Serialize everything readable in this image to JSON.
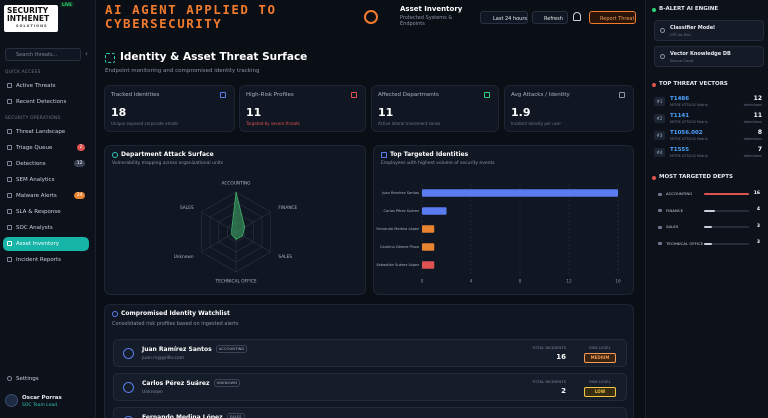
{
  "sidebar": {
    "logo": "SECURITY",
    "logo_accent": "INTHENET",
    "logo_sub": "SOLUTIONS",
    "live": "LIVE",
    "search_placeholder": "Search threats...",
    "sections": [
      {
        "title": "QUICK ACCESS",
        "items": [
          {
            "label": "Active Threats"
          },
          {
            "label": "Recent Detections"
          }
        ]
      },
      {
        "title": "SECURITY OPERATIONS",
        "items": [
          {
            "label": "Threat Landscape"
          },
          {
            "label": "Triage Queue",
            "badge": 2
          },
          {
            "label": "Detections",
            "badge": 12
          },
          {
            "label": "SEM Analytics"
          },
          {
            "label": "Malware Alerts",
            "badge": 24
          },
          {
            "label": "SLA & Response"
          },
          {
            "label": "SOC Analysts"
          },
          {
            "label": "Asset Inventory"
          },
          {
            "label": "Incident Reports"
          }
        ]
      }
    ],
    "settings": "Settings",
    "user": {
      "name": "Oscar Porras",
      "role": "SOC Team Lead"
    }
  },
  "header": {
    "title": "AI AGENT APPLIED TO CYBERSECURITY",
    "page": "Asset Inventory",
    "page_sub": "Protected Systems & Endpoints",
    "range": "Last 24 hours",
    "refresh": "Refresh",
    "report": "Report Threat"
  },
  "page": {
    "title": "Identity & Asset Threat Surface",
    "subtitle": "Endpoint monitoring and compromised identity tracking",
    "stats": [
      {
        "label": "Tracked Identities",
        "value": 18,
        "note": "Unique exposed corporate emails"
      },
      {
        "label": "High-Risk Profiles",
        "value": 11,
        "note": "Targeted by severe threats"
      },
      {
        "label": "Affected Departments",
        "value": 11,
        "note": "Active lateral movement zones"
      },
      {
        "label": "Avg Attacks / Identity",
        "value": 1.9,
        "note": "Incident density per user"
      }
    ],
    "radar": {
      "type": "radar",
      "title": "Department Attack Surface",
      "subtitle": "Vulnerability mapping across organizational units",
      "categories": [
        "ACCOUNTING",
        "FINANCE",
        "SALES",
        "TECHNICAL OFFICE",
        "Unknown",
        "SALES"
      ],
      "values": [
        16,
        4,
        3,
        3,
        2,
        2
      ],
      "color": "#3fae6a"
    },
    "bars": {
      "type": "hbar",
      "title": "Top Targeted Identities",
      "subtitle": "Employees with highest volume of security events",
      "categories": [
        "Juan Ramírez Santos",
        "Carlos Pérez Suárez",
        "Fernando Medina López",
        "Carolina Gómez Pinzo",
        "Sebastián Suárez López"
      ],
      "values": [
        16,
        2,
        1,
        1,
        1
      ],
      "colors": [
        "#5b7cf0",
        "#5b7cf0",
        "#e8842f",
        "#e8842f",
        "#e05252"
      ],
      "xlim": [
        0,
        16
      ],
      "xticks": [
        0,
        4,
        8,
        12,
        16
      ],
      "grid": true
    },
    "watchlist": {
      "title": "Compromised Identity Watchlist",
      "subtitle": "Consolidated risk profiles based on ingested alerts",
      "incidents_label": "TOTAL INCIDENTS",
      "risk_label": "RISK LEVEL",
      "rows": [
        {
          "name": "Juan Ramírez Santos",
          "tag": "ACCOUNTING",
          "email": "juan.rs@grillo.com",
          "incidents": 16,
          "risk": "MEDIUM"
        },
        {
          "name": "Carlos Pérez Suárez",
          "tag": "UNKNOWN",
          "email": "Unknown",
          "incidents": 2,
          "risk": "LOW"
        },
        {
          "name": "Fernando Medina López",
          "tag": "SALES"
        }
      ]
    }
  },
  "right": {
    "engine_title": "B-ALERT AI ENGINE",
    "engines": [
      {
        "name": "Classifier Model",
        "detail": "GPT-4o-Mini"
      },
      {
        "name": "Vector Knowledge DB",
        "detail": "Secure Cloud"
      }
    ],
    "vectors_title": "TOP THREAT VECTORS",
    "count_label": "detections",
    "vectors": [
      {
        "rank": "#1",
        "id": "T1486",
        "source": "MITRE ATT&CK Matrix",
        "count": 12
      },
      {
        "rank": "#2",
        "id": "T1141",
        "source": "MITRE ATT&CK Matrix",
        "count": 11
      },
      {
        "rank": "#3",
        "id": "T1056.002",
        "source": "MITRE ATT&CK Matrix",
        "count": 8
      },
      {
        "rank": "#4",
        "id": "T1555",
        "source": "MITRE ATT&CK Matrix",
        "count": 7
      }
    ],
    "depts_title": "MOST TARGETED DEPTS",
    "depts": [
      {
        "name": "ACCOUNTING",
        "count": 16
      },
      {
        "name": "FINANCE",
        "count": 4
      },
      {
        "name": "SALES",
        "count": 3
      },
      {
        "name": "TECHNICAL OFFICE",
        "count": 3
      }
    ]
  }
}
